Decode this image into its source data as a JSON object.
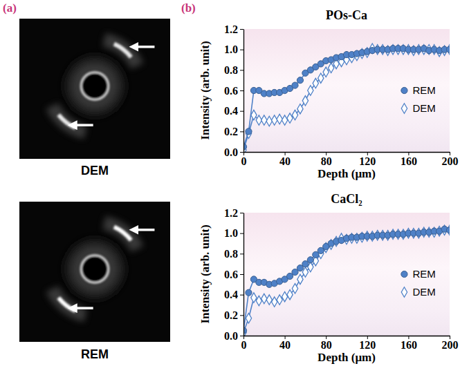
{
  "figure": {
    "panel_a": {
      "label": "(a)",
      "images": [
        {
          "caption": "DEM"
        },
        {
          "caption": "REM"
        }
      ]
    },
    "panel_b": {
      "label": "(b)"
    }
  },
  "chart_data": [
    {
      "type": "line",
      "title": "POs-Ca",
      "x_label": "Depth (μm)",
      "y_label": "Intensity (arb. unit)",
      "x": [
        0,
        5,
        10,
        15,
        20,
        25,
        30,
        35,
        40,
        45,
        50,
        55,
        60,
        65,
        70,
        75,
        80,
        85,
        90,
        95,
        100,
        105,
        110,
        115,
        120,
        125,
        130,
        135,
        140,
        145,
        150,
        155,
        160,
        165,
        170,
        175,
        180,
        185,
        190,
        195,
        200
      ],
      "series": [
        {
          "name": "REM",
          "color": "#4f81c7",
          "marker": "circle",
          "line_style": "solid",
          "values": [
            0.05,
            0.2,
            0.6,
            0.6,
            0.57,
            0.57,
            0.58,
            0.58,
            0.6,
            0.62,
            0.65,
            0.7,
            0.77,
            0.8,
            0.83,
            0.86,
            0.89,
            0.9,
            0.92,
            0.93,
            0.95,
            0.95,
            0.96,
            0.97,
            0.98,
            0.99,
            1,
            1,
            1,
            1.01,
            1.01,
            1.01,
            1,
            1,
            1,
            1.01,
            0.99,
            1,
            0.99,
            1,
            1
          ]
        },
        {
          "name": "DEM",
          "color": "#4f81c7",
          "marker": "diamond",
          "line_style": "solid",
          "values": [
            0.02,
            0.18,
            0.36,
            0.31,
            0.31,
            0.3,
            0.31,
            0.32,
            0.31,
            0.33,
            0.36,
            0.42,
            0.5,
            0.6,
            0.67,
            0.72,
            0.78,
            0.82,
            0.86,
            0.88,
            0.9,
            0.92,
            0.94,
            0.96,
            0.97,
            1.01,
            1,
            1,
            0.99,
            1,
            1,
            1,
            1,
            0.99,
            1,
            1,
            1,
            1,
            0.98,
            0.99,
            1
          ]
        }
      ],
      "xlim": [
        0,
        200
      ],
      "xticks": [
        0,
        40,
        80,
        120,
        160,
        200
      ],
      "ylim": [
        0,
        1.2
      ],
      "yticks": [
        {
          "value": 0,
          "label": "0.0"
        },
        0.2,
        0.4,
        0.6,
        0.8,
        {
          "value": 1,
          "label": "1.0"
        },
        1.2
      ],
      "legend": "lower right",
      "grid": false
    },
    {
      "type": "line",
      "title": "CaCl₂",
      "x_label": "Depth (μm)",
      "y_label": "Intensity (arb. unit)",
      "x": [
        0,
        5,
        10,
        15,
        20,
        25,
        30,
        35,
        40,
        45,
        50,
        55,
        60,
        65,
        70,
        75,
        80,
        85,
        90,
        95,
        100,
        105,
        110,
        115,
        120,
        125,
        130,
        135,
        140,
        145,
        150,
        155,
        160,
        165,
        170,
        175,
        180,
        185,
        190,
        195,
        200
      ],
      "series": [
        {
          "name": "REM",
          "color": "#4f81c7",
          "marker": "circle",
          "line_style": "solid",
          "values": [
            0.05,
            0.42,
            0.55,
            0.52,
            0.52,
            0.5,
            0.51,
            0.53,
            0.55,
            0.58,
            0.62,
            0.66,
            0.7,
            0.74,
            0.79,
            0.83,
            0.87,
            0.9,
            0.92,
            0.93,
            0.95,
            0.96,
            0.96,
            0.97,
            0.97,
            0.97,
            0.98,
            0.98,
            0.98,
            0.99,
            0.99,
            0.99,
            1,
            1,
            1,
            1.01,
            1.01,
            1.02,
            1.02,
            1.04,
            1.03
          ]
        },
        {
          "name": "DEM",
          "color": "#4f81c7",
          "marker": "diamond",
          "line_style": "solid",
          "values": [
            0.03,
            0.17,
            0.37,
            0.34,
            0.36,
            0.35,
            0.33,
            0.35,
            0.38,
            0.4,
            0.46,
            0.55,
            0.62,
            0.67,
            0.73,
            0.8,
            0.86,
            0.89,
            0.92,
            0.95,
            0.94,
            0.95,
            0.95,
            0.96,
            0.97,
            0.97,
            0.98,
            0.98,
            0.98,
            0.99,
            0.99,
            0.99,
            1,
            1,
            1,
            1.01,
            1.01,
            1.01,
            1.02,
            1.03,
            1.03
          ]
        }
      ],
      "xlim": [
        0,
        200
      ],
      "xticks": [
        0,
        40,
        80,
        120,
        160,
        200
      ],
      "ylim": [
        0,
        1.2
      ],
      "yticks": [
        {
          "value": 0,
          "label": "0.0"
        },
        0.2,
        0.4,
        0.6,
        0.8,
        {
          "value": 1,
          "label": "1.0"
        },
        1.2
      ],
      "legend": "lower right",
      "grid": false
    }
  ]
}
